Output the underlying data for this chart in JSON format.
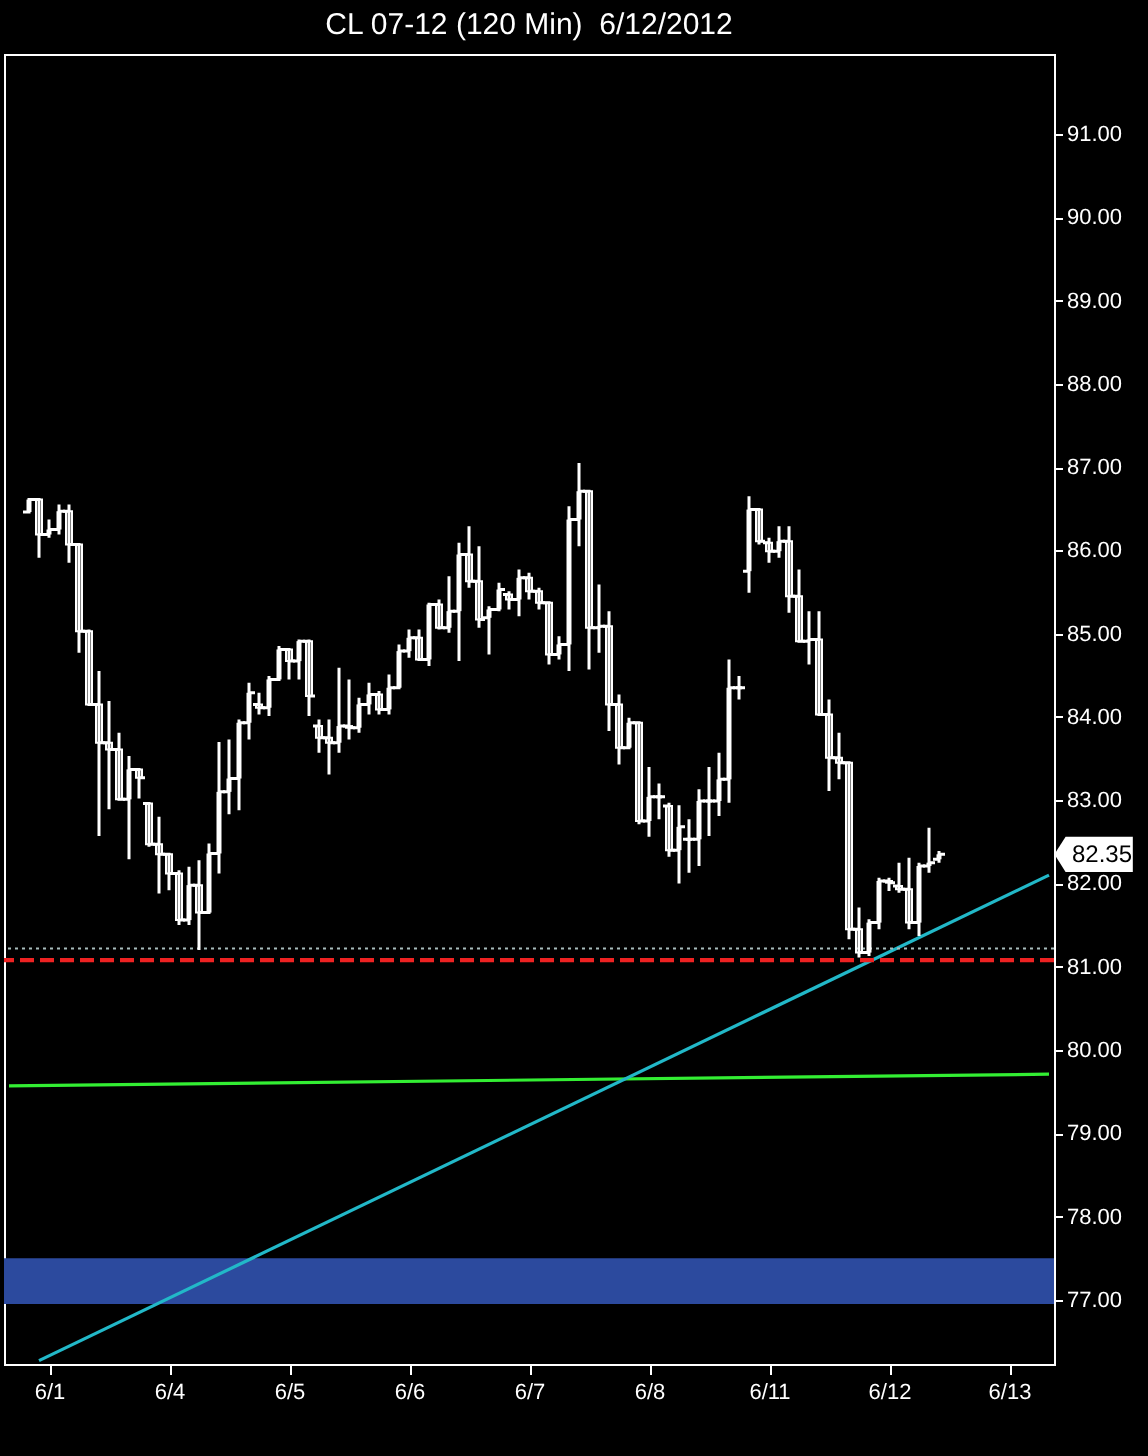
{
  "chart_data": {
    "type": "candlestick",
    "title": "CL 07-12 (120 Min)  6/12/2012",
    "color": "#ffffff",
    "categories": [
      null,
      null,
      null,
      null,
      "6/1",
      null,
      null,
      null,
      null,
      null,
      null,
      null,
      null,
      null,
      null,
      null,
      "6/4",
      null,
      null,
      null,
      null,
      null,
      null,
      null,
      null,
      null,
      null,
      null,
      "6/5",
      null,
      null,
      null,
      null,
      null,
      null,
      null,
      null,
      null,
      null,
      null,
      "6/6",
      null,
      null,
      null,
      null,
      null,
      null,
      null,
      null,
      null,
      null,
      null,
      "6/7",
      null,
      null,
      null,
      null,
      null,
      null,
      null,
      null,
      null,
      null,
      null,
      "6/8",
      null,
      null,
      null,
      null,
      null,
      null,
      null,
      null,
      null,
      null,
      null,
      "6/11",
      null,
      null,
      null,
      null,
      null,
      null,
      null,
      null,
      null,
      null,
      null,
      "6/12",
      null,
      null,
      null,
      null,
      null,
      null,
      null,
      null,
      null,
      null,
      null,
      "6/13",
      null,
      null,
      null,
      null
    ],
    "ohlc": [
      null,
      null,
      [
        86.46,
        86.61,
        86.46,
        86.61
      ],
      [
        86.61,
        86.61,
        85.91,
        86.19
      ],
      [
        86.19,
        86.37,
        86.15,
        86.25
      ],
      [
        86.25,
        86.55,
        86.19,
        86.47
      ],
      [
        86.47,
        86.55,
        85.85,
        86.07
      ],
      [
        86.07,
        86.07,
        84.77,
        85.03
      ],
      [
        85.03,
        85.05,
        84.13,
        84.15
      ],
      [
        84.15,
        84.55,
        82.57,
        83.69
      ],
      [
        83.69,
        84.19,
        82.89,
        83.61
      ],
      [
        83.61,
        83.81,
        83.01,
        83.01
      ],
      [
        83.01,
        83.53,
        82.29,
        83.37
      ],
      [
        83.37,
        83.37,
        83.02,
        83.27
      ],
      [
        82.96,
        82.96,
        82.44,
        82.47
      ],
      [
        82.47,
        82.8,
        81.88,
        82.35
      ],
      [
        82.35,
        82.35,
        81.92,
        82.12
      ],
      [
        82.12,
        82.16,
        81.5,
        81.56
      ],
      [
        81.56,
        82.2,
        81.5,
        81.98
      ],
      [
        81.98,
        82.28,
        81.2,
        81.65
      ],
      [
        81.65,
        82.48,
        81.64,
        82.36
      ],
      [
        82.36,
        83.7,
        82.12,
        83.1
      ],
      [
        83.1,
        83.73,
        82.83,
        83.26
      ],
      [
        83.26,
        83.97,
        82.88,
        83.93
      ],
      [
        83.93,
        84.41,
        83.73,
        84.29
      ],
      [
        84.15,
        84.29,
        84.03,
        84.11
      ],
      [
        84.11,
        84.49,
        84.01,
        84.45
      ],
      [
        84.45,
        84.85,
        84.45,
        84.81
      ],
      [
        84.81,
        84.81,
        84.45,
        84.67
      ],
      [
        84.67,
        84.93,
        84.45,
        84.91
      ],
      [
        84.91,
        84.93,
        84.01,
        84.25
      ],
      [
        83.89,
        83.97,
        83.57,
        83.75
      ],
      [
        83.75,
        83.97,
        83.31,
        83.69
      ],
      [
        83.69,
        84.59,
        83.57,
        83.89
      ],
      [
        83.89,
        84.45,
        83.73,
        83.87
      ],
      [
        83.87,
        84.23,
        83.81,
        84.15
      ],
      [
        84.15,
        84.41,
        84.03,
        84.27
      ],
      [
        84.27,
        84.31,
        84.03,
        84.09
      ],
      [
        84.09,
        84.51,
        84.03,
        84.35
      ],
      [
        84.35,
        84.87,
        84.35,
        84.79
      ],
      [
        84.79,
        85.05,
        84.71,
        84.95
      ],
      [
        84.95,
        85.05,
        84.67,
        84.69
      ],
      [
        84.69,
        85.37,
        84.61,
        85.35
      ],
      [
        85.35,
        85.41,
        85.05,
        85.07
      ],
      [
        85.07,
        85.69,
        85.01,
        85.27
      ],
      [
        85.27,
        86.09,
        84.67,
        85.95
      ],
      [
        85.95,
        86.29,
        85.55,
        85.63
      ],
      [
        85.63,
        86.05,
        85.07,
        85.17
      ],
      [
        85.19,
        85.33,
        84.75,
        85.29
      ],
      [
        85.29,
        85.61,
        85.27,
        85.53
      ],
      [
        85.47,
        85.51,
        85.29,
        85.41
      ],
      [
        85.41,
        85.77,
        85.21,
        85.67
      ],
      [
        85.67,
        85.73,
        85.41,
        85.51
      ],
      [
        85.51,
        85.55,
        85.29,
        85.37
      ],
      [
        85.37,
        85.39,
        84.63,
        84.75
      ],
      [
        84.75,
        84.97,
        84.69,
        84.87
      ],
      [
        84.87,
        86.53,
        84.55,
        86.37
      ],
      [
        86.37,
        87.05,
        86.05,
        86.71
      ],
      [
        86.71,
        86.71,
        84.57,
        85.07
      ],
      [
        85.07,
        85.59,
        84.77,
        85.09
      ],
      [
        85.09,
        85.27,
        83.83,
        84.15
      ],
      [
        84.15,
        84.27,
        83.43,
        83.63
      ],
      [
        83.63,
        83.99,
        83.63,
        83.93
      ],
      [
        83.93,
        83.93,
        82.71,
        82.75
      ],
      [
        82.75,
        83.4,
        82.56,
        83.04
      ],
      [
        83.04,
        83.2,
        82.77,
        83.04
      ],
      [
        82.93,
        82.97,
        82.32,
        82.4
      ],
      [
        82.4,
        82.94,
        82.0,
        82.68
      ],
      [
        82.53,
        82.77,
        82.13,
        82.53
      ],
      [
        82.53,
        83.13,
        82.21,
        82.99
      ],
      [
        82.99,
        83.4,
        82.57,
        82.99
      ],
      [
        82.99,
        83.57,
        82.81,
        83.25
      ],
      [
        83.25,
        84.69,
        82.97,
        84.35
      ],
      [
        84.35,
        84.49,
        84.21,
        84.35
      ],
      [
        85.75,
        86.65,
        85.49,
        86.49
      ],
      [
        86.49,
        86.51,
        86.07,
        86.11
      ],
      [
        86.09,
        86.15,
        85.85,
        85.99
      ],
      [
        85.99,
        86.29,
        85.91,
        86.11
      ],
      [
        86.11,
        86.29,
        85.25,
        85.45
      ],
      [
        85.45,
        85.77,
        84.89,
        84.91
      ],
      [
        84.91,
        85.27,
        84.63,
        84.93
      ],
      [
        84.93,
        85.27,
        84.03,
        84.03
      ],
      [
        84.03,
        84.21,
        83.11,
        83.51
      ],
      [
        83.51,
        83.81,
        83.25,
        83.45
      ],
      [
        83.45,
        83.45,
        81.33,
        81.45
      ],
      [
        81.45,
        81.71,
        81.11,
        81.17
      ],
      [
        81.17,
        81.57,
        81.13,
        81.53
      ],
      [
        81.53,
        82.07,
        81.45,
        82.03
      ],
      [
        82.03,
        82.07,
        81.91,
        82.01
      ],
      [
        81.97,
        82.25,
        81.89,
        81.93
      ],
      [
        81.93,
        82.31,
        81.45,
        81.53
      ],
      [
        81.53,
        82.25,
        81.37,
        82.21
      ],
      [
        82.21,
        82.67,
        82.13,
        82.25
      ],
      [
        82.29,
        82.39,
        82.25,
        82.35
      ],
      null,
      null,
      null,
      null,
      null,
      null,
      null,
      null,
      null,
      null,
      null
    ],
    "series": [
      {
        "type": "line",
        "color": "#33ee33",
        "values": [
          79.57,
          null,
          null,
          null,
          null,
          null,
          null,
          null,
          null,
          null,
          null,
          null,
          null,
          null,
          null,
          null,
          null,
          null,
          null,
          null,
          null,
          null,
          null,
          null,
          null,
          null,
          null,
          null,
          null,
          null,
          null,
          null,
          null,
          null,
          null,
          null,
          null,
          null,
          null,
          null,
          null,
          null,
          null,
          null,
          null,
          null,
          null,
          null,
          null,
          null,
          null,
          null,
          null,
          null,
          null,
          null,
          null,
          null,
          null,
          null,
          null,
          null,
          null,
          null,
          null,
          null,
          null,
          null,
          null,
          null,
          null,
          null,
          null,
          null,
          null,
          null,
          null,
          null,
          null,
          null,
          null,
          null,
          null,
          null,
          null,
          null,
          null,
          null,
          null,
          null,
          null,
          null,
          null,
          null,
          null,
          null,
          null,
          null,
          null,
          null,
          null,
          null,
          null,
          null,
          79.71
        ]
      },
      {
        "type": "line",
        "color": "#22b8c8",
        "values": [
          null,
          null,
          null,
          76.27,
          null,
          null,
          null,
          null,
          null,
          null,
          null,
          null,
          null,
          null,
          null,
          null,
          null,
          null,
          null,
          null,
          null,
          null,
          null,
          null,
          null,
          null,
          null,
          null,
          null,
          null,
          null,
          null,
          null,
          null,
          null,
          null,
          null,
          null,
          null,
          null,
          null,
          null,
          null,
          null,
          null,
          null,
          null,
          null,
          null,
          null,
          null,
          null,
          null,
          null,
          null,
          null,
          null,
          null,
          null,
          null,
          null,
          null,
          null,
          null,
          null,
          null,
          null,
          null,
          null,
          null,
          null,
          null,
          null,
          null,
          null,
          null,
          null,
          null,
          null,
          null,
          null,
          null,
          null,
          null,
          null,
          null,
          null,
          null,
          null,
          null,
          null,
          null,
          null,
          null,
          null,
          null,
          null,
          null,
          null,
          null,
          null,
          null,
          null,
          null,
          82.1
        ]
      }
    ],
    "ylim": [
      76.23,
      91.96
    ],
    "yticks": [
      {
        "value": 77,
        "label": "77.00"
      },
      {
        "value": 78,
        "label": "78.00"
      },
      {
        "value": 79,
        "label": "79.00"
      },
      {
        "value": 80,
        "label": "80.00"
      },
      {
        "value": 81,
        "label": "81.00"
      },
      {
        "value": 82,
        "label": "82.00"
      },
      {
        "value": 83,
        "label": "83.00"
      },
      {
        "value": 84,
        "label": "84.00"
      },
      {
        "value": 85,
        "label": "85.00"
      },
      {
        "value": 86,
        "label": "86.00"
      },
      {
        "value": 87,
        "label": "87.00"
      },
      {
        "value": 88,
        "label": "88.00"
      },
      {
        "value": 89,
        "label": "89.00"
      },
      {
        "value": 90,
        "label": "90.00"
      },
      {
        "value": 91,
        "label": "91.00"
      }
    ],
    "ref_lines": [
      {
        "axis": "y",
        "value": 81.08,
        "color": "#ee2222",
        "line_style": "dashed"
      },
      {
        "axis": "y",
        "value": 81.22,
        "color": "#a8bcbc",
        "line_style": "dotted"
      }
    ],
    "bands": [
      {
        "axis": "y",
        "from": 76.95,
        "to": 77.5,
        "color": "#2c4a9e"
      }
    ],
    "annotations": [
      "82.35"
    ]
  }
}
